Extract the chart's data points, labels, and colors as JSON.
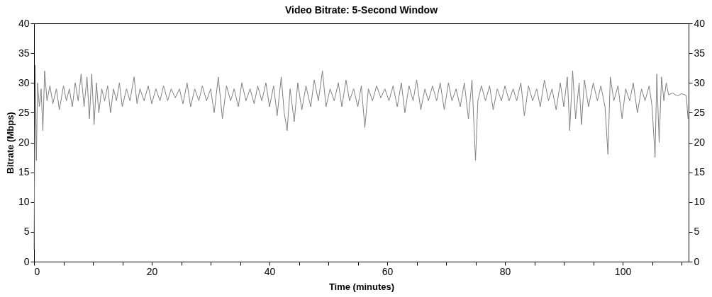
{
  "chart_data": {
    "type": "line",
    "title": "Video Bitrate: 5-Second Window",
    "xlabel": "Time (minutes)",
    "ylabel": "Bitrate (Mbps)",
    "xlim": [
      0,
      111.2
    ],
    "xticks": [
      0,
      {
        "value": 5,
        "label": null
      },
      {
        "value": 10,
        "label": null
      },
      {
        "value": 15,
        "label": null
      },
      20,
      {
        "value": 25,
        "label": null
      },
      {
        "value": 30,
        "label": null
      },
      {
        "value": 35,
        "label": null
      },
      40,
      {
        "value": 45,
        "label": null
      },
      {
        "value": 50,
        "label": null
      },
      {
        "value": 55,
        "label": null
      },
      60,
      {
        "value": 65,
        "label": null
      },
      {
        "value": 70,
        "label": null
      },
      {
        "value": 75,
        "label": null
      },
      80,
      {
        "value": 85,
        "label": null
      },
      {
        "value": 90,
        "label": null
      },
      {
        "value": 95,
        "label": null
      },
      100,
      {
        "value": 105,
        "label": null
      },
      {
        "value": 110,
        "label": null
      }
    ],
    "ylim": [
      0,
      40
    ],
    "yticks": [
      0,
      5,
      10,
      15,
      20,
      25,
      30,
      35,
      40
    ],
    "y2lim": [
      0,
      40
    ],
    "y2ticks": [
      0,
      5,
      10,
      15,
      20,
      25,
      30,
      35,
      40
    ],
    "grid": false,
    "marker": "none",
    "line_style": "solid",
    "x": [
      0,
      0.2,
      0.4,
      0.6,
      0.9,
      1.2,
      1.5,
      1.8,
      2.2,
      2.7,
      3.2,
      3.8,
      4.3,
      5,
      5.5,
      6,
      6.5,
      7,
      7.5,
      8,
      8.5,
      9,
      9.4,
      9.8,
      10.2,
      10.6,
      11,
      11.5,
      12,
      12.5,
      13,
      13.5,
      14,
      14.5,
      15,
      15.7,
      16.3,
      17,
      17.5,
      18,
      18.7,
      19.4,
      20,
      20.7,
      21.4,
      22,
      22.7,
      23.3,
      24,
      24.7,
      25.3,
      26,
      26.6,
      27.3,
      28,
      28.6,
      29.3,
      30,
      30.6,
      31.3,
      32,
      32.7,
      33.4,
      34,
      34.7,
      35.3,
      36,
      36.7,
      37.4,
      38,
      38.7,
      39.4,
      40,
      40.7,
      41.3,
      42,
      42.5,
      43,
      43.5,
      44.2,
      44.8,
      45.5,
      46.2,
      47,
      47.6,
      48.3,
      49,
      49.6,
      50.3,
      51,
      51.7,
      52.3,
      53,
      53.6,
      54.3,
      55,
      55.6,
      56.2,
      56.8,
      57.5,
      58.2,
      58.9,
      59.6,
      60.3,
      61,
      61.7,
      62.4,
      63,
      63.7,
      64.4,
      65,
      65.7,
      66.4,
      67,
      67.7,
      68.4,
      69,
      69.7,
      70.4,
      71,
      71.7,
      72.4,
      73.1,
      73.8,
      74.4,
      75,
      75.4,
      76,
      76.7,
      77.4,
      78,
      78.7,
      79.4,
      80,
      80.7,
      81.4,
      82,
      82.7,
      83.3,
      84,
      84.7,
      85.4,
      86,
      86.7,
      87.4,
      88,
      88.7,
      89.4,
      90,
      90.6,
      91,
      91.5,
      92,
      92.6,
      93,
      93.5,
      94.2,
      95,
      95.7,
      96.3,
      97,
      97.5,
      97.9,
      98.5,
      99.2,
      99.9,
      100.5,
      101.2,
      101.8,
      102.5,
      103.2,
      103.8,
      104.5,
      105,
      105.5,
      105.8,
      106.2,
      106.6,
      107,
      107.4,
      107.8,
      108.5,
      109.3,
      110,
      110.8,
      111.1
    ],
    "series": [
      {
        "color": "#808080",
        "values": [
          2,
          33,
          17,
          30,
          26,
          29,
          22,
          32,
          27,
          29.5,
          26.5,
          29,
          25.5,
          29.5,
          27,
          29,
          26,
          30,
          27,
          31.5,
          26,
          31,
          24,
          31.5,
          23,
          30,
          25,
          29,
          27,
          29.5,
          25,
          29,
          27,
          30,
          26,
          29,
          27,
          31,
          26.5,
          29,
          27,
          29.5,
          26.5,
          29,
          27,
          29.5,
          27,
          29,
          27.5,
          29,
          26.5,
          30,
          26,
          29,
          27,
          29.5,
          27,
          29,
          25,
          31,
          24,
          29.5,
          27,
          29,
          26,
          30,
          27,
          29,
          26.5,
          29.5,
          27,
          30,
          26,
          29.5,
          24.5,
          31,
          25,
          22,
          29,
          23.5,
          30,
          25.5,
          29.5,
          26,
          30.5,
          27,
          32,
          26,
          29,
          27,
          30,
          26,
          30.5,
          27,
          29,
          26,
          29.5,
          22.5,
          29,
          27,
          29.5,
          27.5,
          29,
          27,
          29.5,
          26,
          30,
          25,
          29.5,
          27,
          30.5,
          25.5,
          29,
          27,
          29.5,
          27,
          30,
          25.5,
          30,
          27,
          29,
          26,
          30,
          24,
          30.5,
          17,
          27,
          29.5,
          27,
          29.5,
          25.5,
          29,
          27,
          29.5,
          27,
          29,
          27,
          30,
          24.5,
          29.5,
          27,
          29,
          26,
          30.5,
          27,
          29,
          25.5,
          30,
          26,
          31,
          22,
          32,
          24,
          30,
          23,
          30.5,
          26,
          30,
          27,
          29.5,
          26,
          18,
          31,
          27,
          29.5,
          24,
          29,
          27,
          30,
          25,
          29,
          27,
          29.5,
          26,
          17.5,
          31.5,
          20,
          31,
          27,
          30,
          28,
          28.3,
          27.8,
          28.2,
          27.9,
          24
        ]
      }
    ]
  }
}
